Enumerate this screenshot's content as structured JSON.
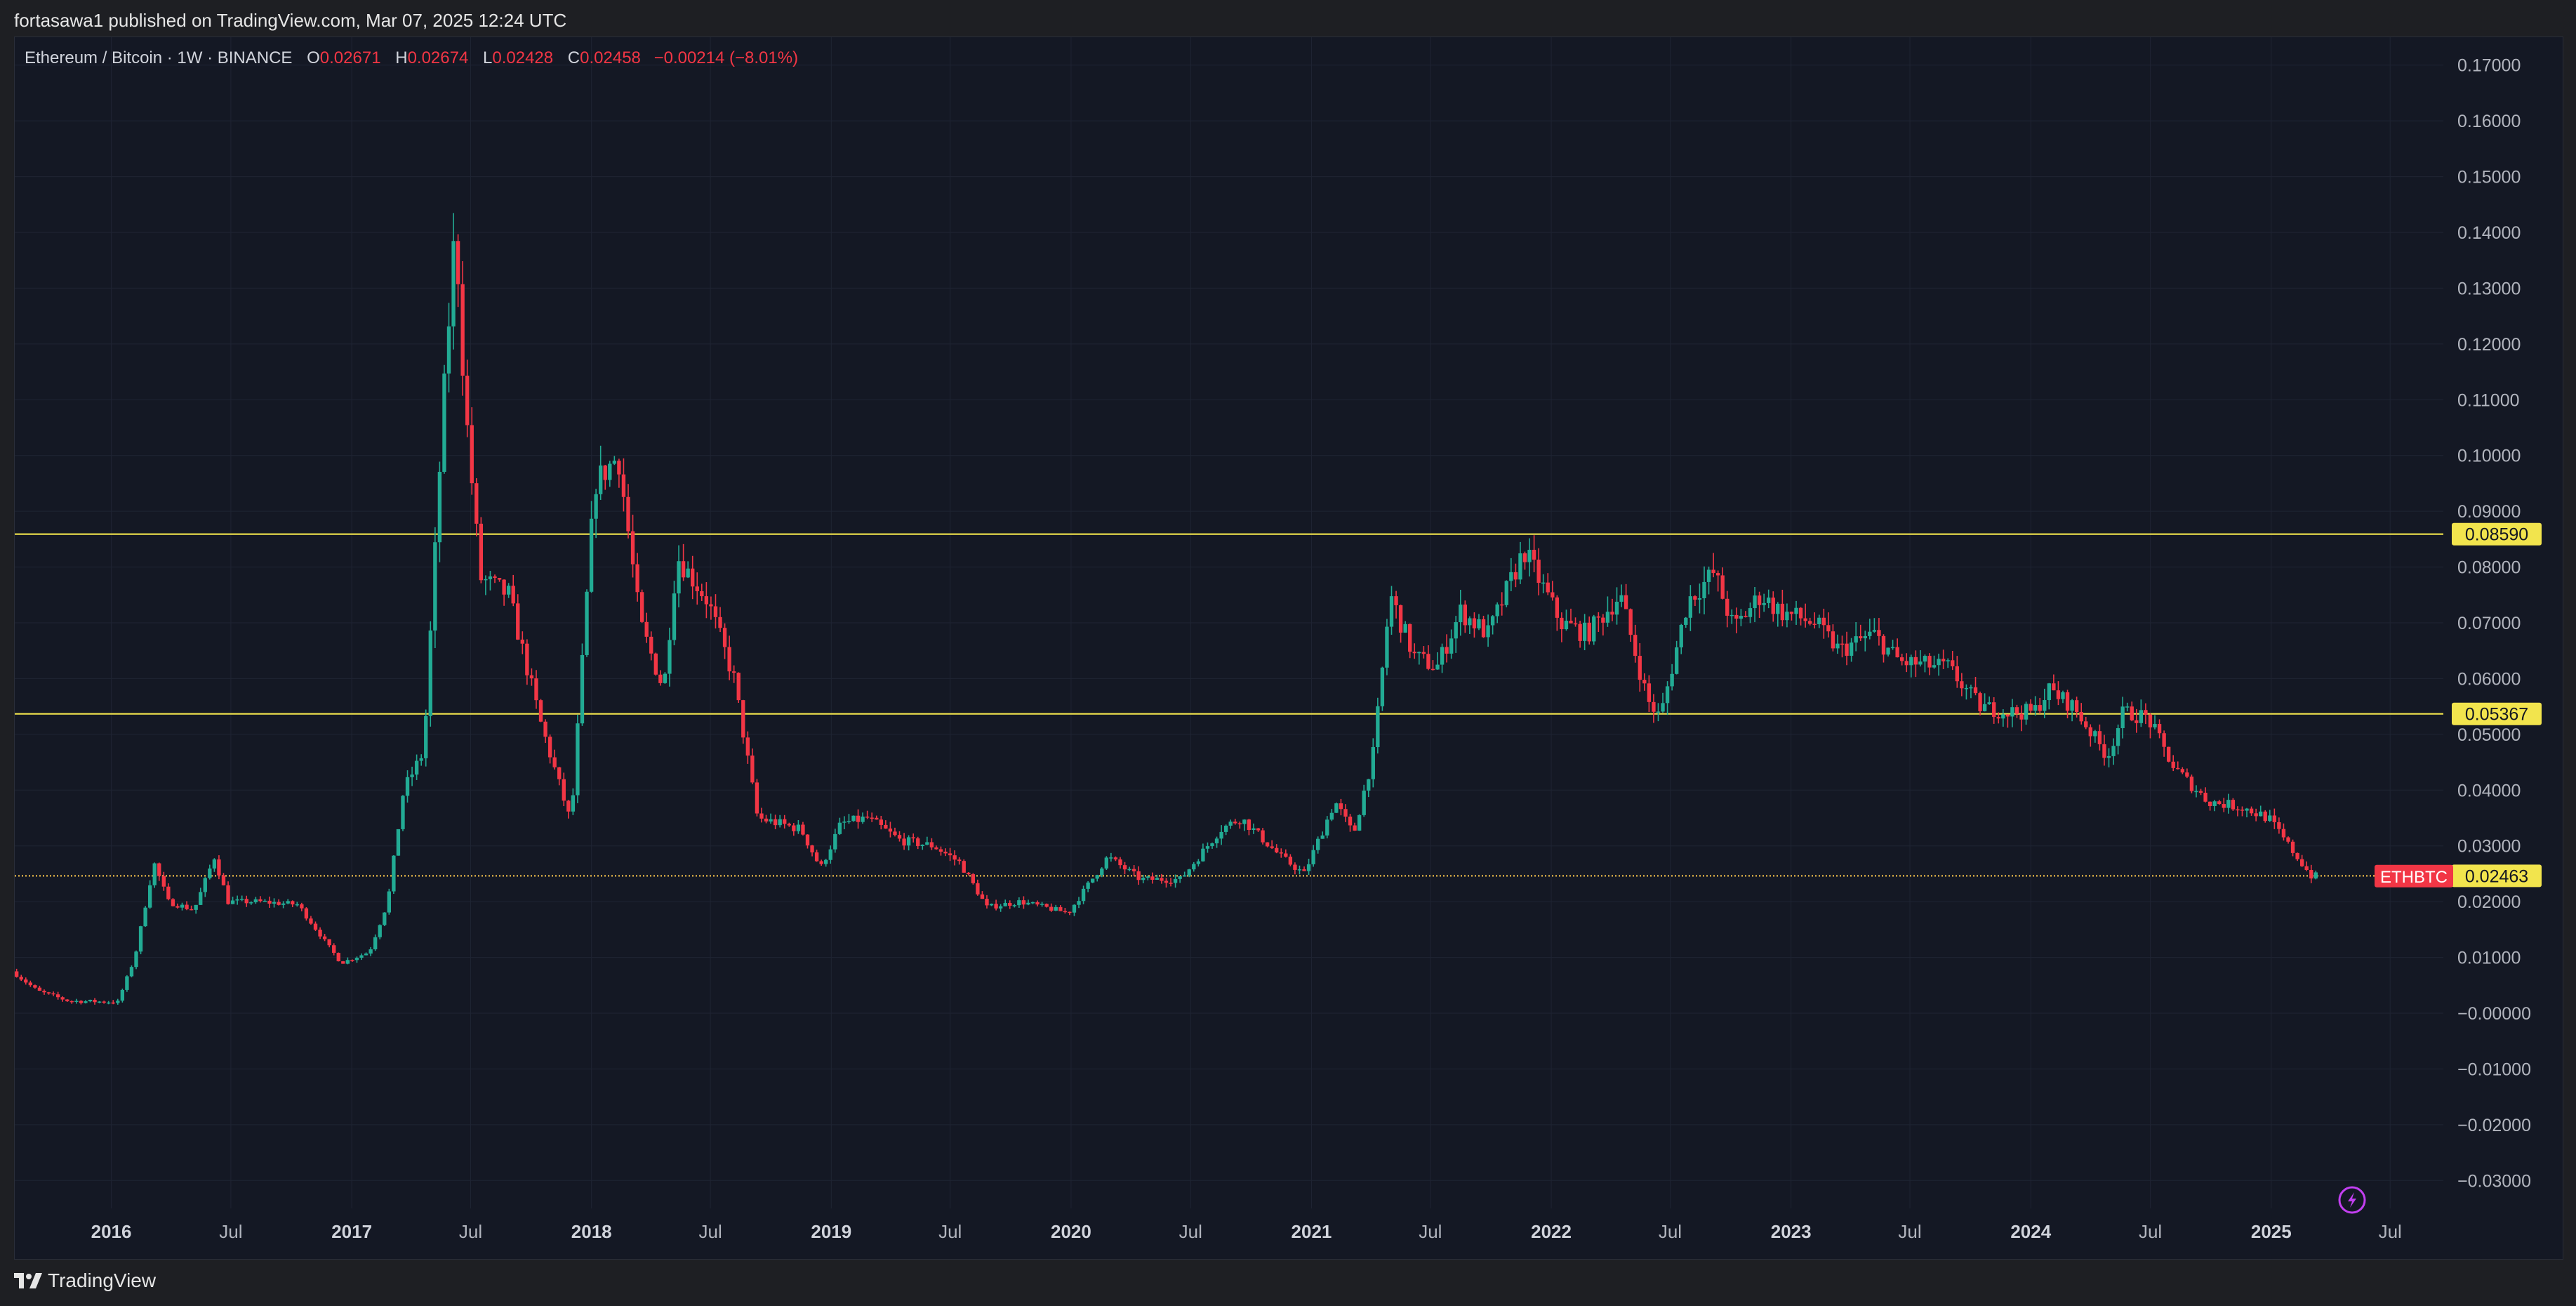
{
  "publish_line": "fortasawa1 published on TradingView.com, Mar 07, 2025 12:24 UTC",
  "legend": {
    "symbol": "Ethereum / Bitcoin · 1W · BINANCE",
    "o_label": "O",
    "o_value": "0.02671",
    "h_label": "H",
    "h_value": "0.02674",
    "l_label": "L",
    "l_value": "0.02428",
    "c_label": "C",
    "c_value": "0.02458",
    "change": "−0.00214 (−8.01%)"
  },
  "footer": {
    "brand": "TradingView",
    "logo_icon": "tradingview-logo-icon"
  },
  "colors": {
    "up": "#22ab94",
    "down": "#f23645",
    "level": "#f2e44d",
    "grid": "#1f2433",
    "axis_text": "#b2b5be",
    "bg": "#141824"
  },
  "chart_data": {
    "type": "candlestick",
    "symbol": "ETHBTC",
    "timeframe": "1W",
    "exchange": "BINANCE",
    "ylim": [
      -0.035,
      0.175
    ],
    "xlim": [
      "2015-08-07",
      "2025-09-20"
    ],
    "y_ticks": [
      "0.17000",
      "0.16000",
      "0.15000",
      "0.14000",
      "0.13000",
      "0.12000",
      "0.11000",
      "0.10000",
      "0.09000",
      "0.08000",
      "0.07000",
      "0.06000",
      "0.05000",
      "0.04000",
      "0.03000",
      "0.02000",
      "0.01000",
      "−0.00000",
      "−0.01000",
      "−0.02000",
      "−0.03000"
    ],
    "x_ticks": [
      {
        "label": "2016",
        "date": "2016-01-01",
        "bold": true
      },
      {
        "label": "Jul",
        "date": "2016-07-01"
      },
      {
        "label": "2017",
        "date": "2017-01-01",
        "bold": true
      },
      {
        "label": "Jul",
        "date": "2017-07-01"
      },
      {
        "label": "2018",
        "date": "2018-01-01",
        "bold": true
      },
      {
        "label": "Jul",
        "date": "2018-07-01"
      },
      {
        "label": "2019",
        "date": "2019-01-01",
        "bold": true
      },
      {
        "label": "Jul",
        "date": "2019-07-01"
      },
      {
        "label": "2020",
        "date": "2020-01-01",
        "bold": true
      },
      {
        "label": "Jul",
        "date": "2020-07-01"
      },
      {
        "label": "2021",
        "date": "2021-01-01",
        "bold": true
      },
      {
        "label": "Jul",
        "date": "2021-07-01"
      },
      {
        "label": "2022",
        "date": "2022-01-01",
        "bold": true
      },
      {
        "label": "Jul",
        "date": "2022-07-01"
      },
      {
        "label": "2023",
        "date": "2023-01-01",
        "bold": true
      },
      {
        "label": "Jul",
        "date": "2023-07-01"
      },
      {
        "label": "2024",
        "date": "2024-01-01",
        "bold": true
      },
      {
        "label": "Jul",
        "date": "2024-07-01"
      },
      {
        "label": "2025",
        "date": "2025-01-01",
        "bold": true
      },
      {
        "label": "Jul",
        "date": "2025-07-01"
      }
    ],
    "levels": [
      {
        "value": 0.0859,
        "label": "0.08590",
        "style": "solid"
      },
      {
        "value": 0.05367,
        "label": "0.05367",
        "style": "solid"
      },
      {
        "value": 0.02463,
        "label": "0.02463",
        "style": "dotted"
      }
    ],
    "price_tag": {
      "value": 0.02458,
      "label": "ETHBTC"
    },
    "series_anchors": [
      [
        "2015-08-07",
        0.0075
      ],
      [
        "2015-09-15",
        0.004
      ],
      [
        "2015-11-01",
        0.0022
      ],
      [
        "2016-01-15",
        0.002
      ],
      [
        "2016-02-10",
        0.01
      ],
      [
        "2016-03-10",
        0.027
      ],
      [
        "2016-04-01",
        0.02
      ],
      [
        "2016-05-10",
        0.0185
      ],
      [
        "2016-06-10",
        0.028
      ],
      [
        "2016-07-01",
        0.02
      ],
      [
        "2016-08-15",
        0.02
      ],
      [
        "2016-10-15",
        0.0195
      ],
      [
        "2016-12-20",
        0.009
      ],
      [
        "2017-02-01",
        0.011
      ],
      [
        "2017-03-01",
        0.02
      ],
      [
        "2017-03-25",
        0.04
      ],
      [
        "2017-04-25",
        0.047
      ],
      [
        "2017-05-25",
        0.11
      ],
      [
        "2017-06-12",
        0.142
      ],
      [
        "2017-06-26",
        0.11
      ],
      [
        "2017-07-20",
        0.078
      ],
      [
        "2017-09-01",
        0.075
      ],
      [
        "2017-10-20",
        0.052
      ],
      [
        "2017-12-05",
        0.034
      ],
      [
        "2018-01-10",
        0.095
      ],
      [
        "2018-02-15",
        0.1
      ],
      [
        "2018-03-20",
        0.07
      ],
      [
        "2018-04-25",
        0.058
      ],
      [
        "2018-05-15",
        0.082
      ],
      [
        "2018-07-01",
        0.074
      ],
      [
        "2018-08-10",
        0.06
      ],
      [
        "2018-09-15",
        0.035
      ],
      [
        "2018-11-20",
        0.033
      ],
      [
        "2018-12-20",
        0.026
      ],
      [
        "2019-01-20",
        0.034
      ],
      [
        "2019-03-01",
        0.035
      ],
      [
        "2019-04-20",
        0.031
      ],
      [
        "2019-06-10",
        0.03
      ],
      [
        "2019-07-20",
        0.027
      ],
      [
        "2019-08-30",
        0.019
      ],
      [
        "2019-10-20",
        0.02
      ],
      [
        "2020-01-01",
        0.018
      ],
      [
        "2020-03-01",
        0.028
      ],
      [
        "2020-04-20",
        0.024
      ],
      [
        "2020-06-20",
        0.024
      ],
      [
        "2020-08-20",
        0.033
      ],
      [
        "2020-09-20",
        0.035
      ],
      [
        "2020-11-20",
        0.028
      ],
      [
        "2020-12-25",
        0.025
      ],
      [
        "2021-02-10",
        0.038
      ],
      [
        "2021-03-10",
        0.032
      ],
      [
        "2021-04-10",
        0.047
      ],
      [
        "2021-05-05",
        0.075
      ],
      [
        "2021-06-10",
        0.064
      ],
      [
        "2021-07-15",
        0.062
      ],
      [
        "2021-08-20",
        0.072
      ],
      [
        "2021-10-01",
        0.068
      ],
      [
        "2021-11-25",
        0.083
      ],
      [
        "2022-01-20",
        0.07
      ],
      [
        "2022-03-01",
        0.068
      ],
      [
        "2022-04-20",
        0.075
      ],
      [
        "2022-06-01",
        0.056
      ],
      [
        "2022-06-20",
        0.053
      ],
      [
        "2022-08-01",
        0.074
      ],
      [
        "2022-09-10",
        0.079
      ],
      [
        "2022-10-10",
        0.069
      ],
      [
        "2022-11-20",
        0.075
      ],
      [
        "2022-12-20",
        0.072
      ],
      [
        "2023-02-10",
        0.07
      ],
      [
        "2023-03-20",
        0.065
      ],
      [
        "2023-05-10",
        0.068
      ],
      [
        "2023-06-20",
        0.063
      ],
      [
        "2023-09-01",
        0.062
      ],
      [
        "2023-10-20",
        0.055
      ],
      [
        "2023-12-01",
        0.054
      ],
      [
        "2024-01-10",
        0.054
      ],
      [
        "2024-02-01",
        0.058
      ],
      [
        "2024-03-10",
        0.055
      ],
      [
        "2024-05-01",
        0.046
      ],
      [
        "2024-05-25",
        0.054
      ],
      [
        "2024-07-01",
        0.053
      ],
      [
        "2024-08-10",
        0.044
      ],
      [
        "2024-10-01",
        0.038
      ],
      [
        "2024-11-20",
        0.037
      ],
      [
        "2025-01-01",
        0.035
      ],
      [
        "2025-02-01",
        0.03
      ],
      [
        "2025-03-07",
        0.0246
      ]
    ]
  }
}
